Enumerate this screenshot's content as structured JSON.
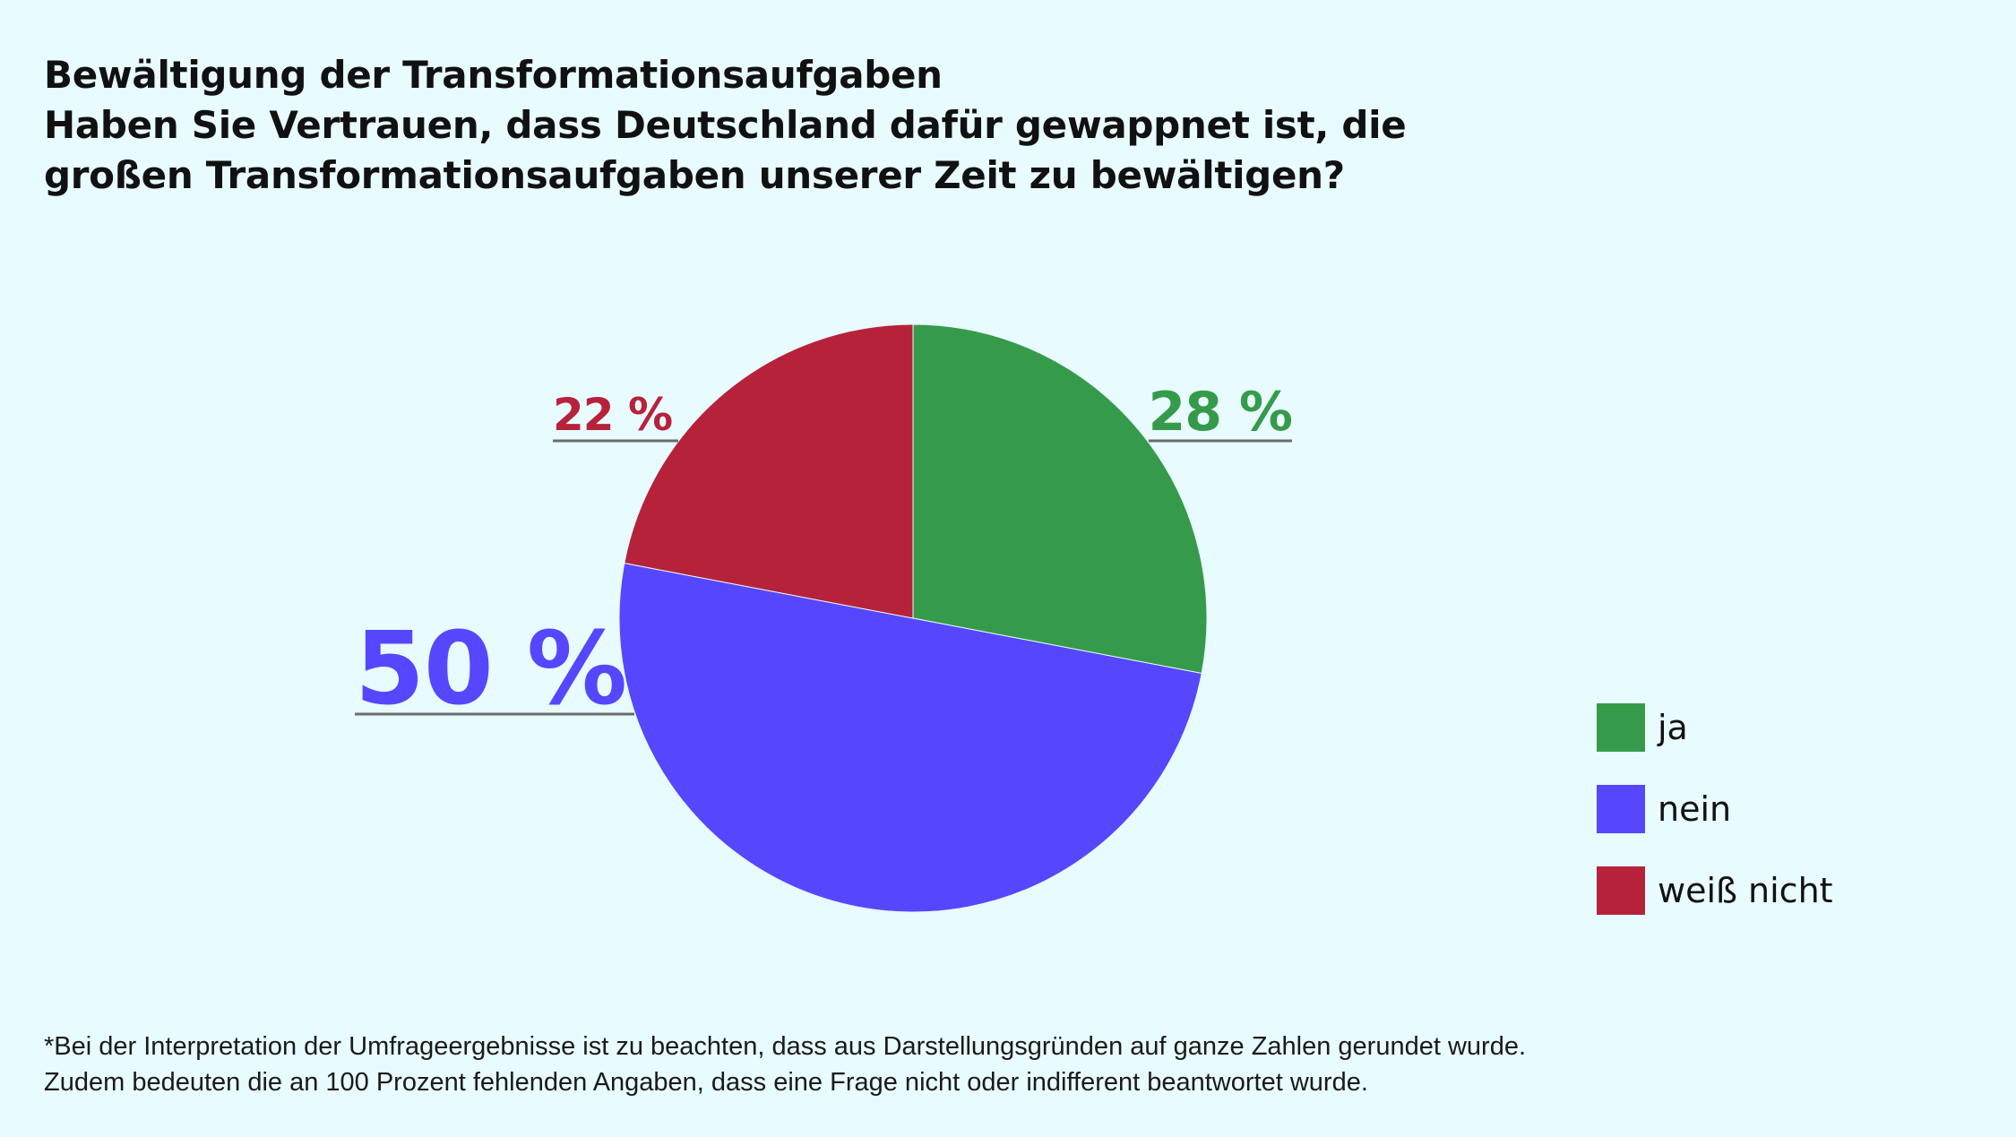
{
  "title": "Bewältigung der Transformationsaufgaben",
  "subtitle_lines": [
    "Haben Sie Vertrauen, dass Deutschland dafür gewappnet ist, die",
    "großen Transformationsaufgaben unserer Zeit zu bewältigen?"
  ],
  "chart_data": {
    "type": "pie",
    "start_angle_deg": 0,
    "direction": "clockwise",
    "slices": [
      {
        "label": "ja",
        "value": 28,
        "value_label": "28 %",
        "color": "#359b4b"
      },
      {
        "label": "nein",
        "value": 50,
        "value_label": "50 %",
        "color": "#5647ff"
      },
      {
        "label": "weiß nicht",
        "value": 22,
        "value_label": "22 %",
        "color": "#b7223b"
      }
    ],
    "legend_position": "right",
    "leader_line_color": "#6b6b6b"
  },
  "legend": [
    {
      "label": "ja",
      "color": "#359b4b"
    },
    {
      "label": "nein",
      "color": "#5647ff"
    },
    {
      "label": "weiß nicht",
      "color": "#b7223b"
    }
  ],
  "footnote_lines": [
    "*Bei der Interpretation der Umfrageergebnisse ist zu beachten, dass aus Darstellungsgründen auf ganze Zahlen gerundet wurde.",
    "Zudem bedeuten die an 100 Prozent fehlenden Angaben, dass eine Frage nicht oder indifferent beantwortet wurde."
  ]
}
